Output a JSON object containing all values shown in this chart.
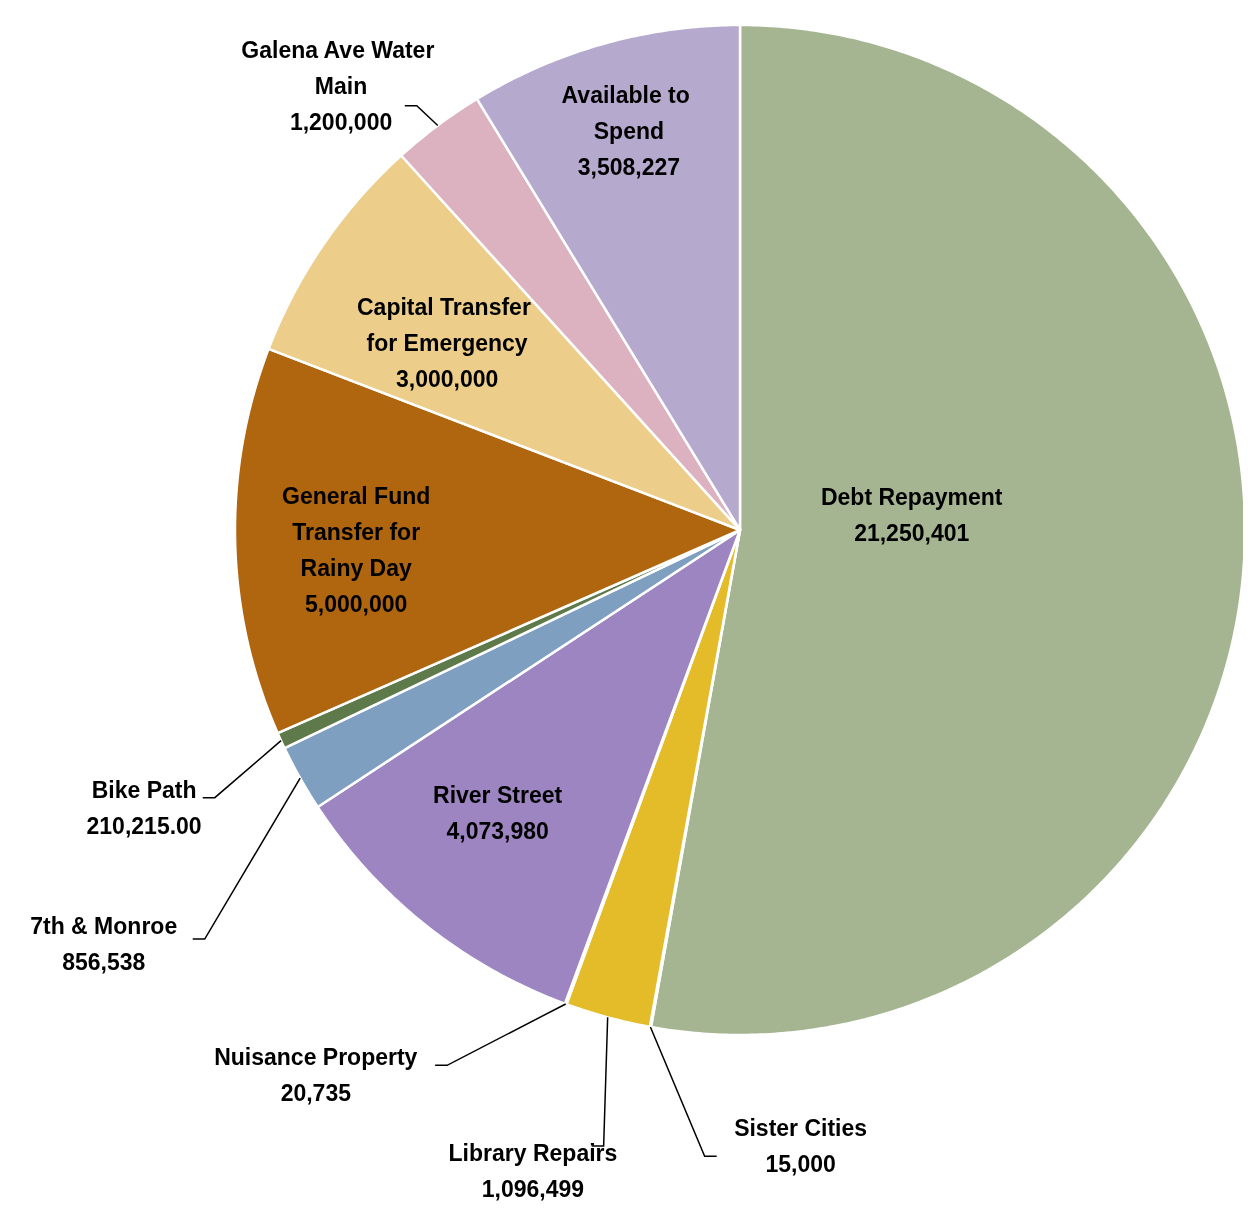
{
  "chart_data": {
    "type": "pie",
    "categories": [
      "Debt Repayment",
      "Sister Cities",
      "Library Repairs",
      "Nuisance Property",
      "River Street",
      "7th & Monroe",
      "Bike Path",
      "General Fund Transfer for Rainy Day",
      "Capital Transfer for Emergency",
      "Galena Ave Water Main",
      "Available to Spend"
    ],
    "values": [
      21250401,
      15000,
      1096499,
      20735,
      4073980,
      856538,
      210215,
      5000000,
      3000000,
      1200000,
      3508227
    ],
    "value_labels": [
      "21,250,401",
      "15,000",
      "1,096,499",
      "20,735",
      "4,073,980",
      "856,538",
      "210,215.00",
      "5,000,000",
      "3,000,000",
      "1,200,000",
      "3,508,227"
    ],
    "colors": [
      "#a5b592",
      "#e4bc2a",
      "#e4bc2a",
      "#9c85c0",
      "#9c85c0",
      "#7f9fc0",
      "#5f7a4a",
      "#b0650f",
      "#eccd8a",
      "#dcb1c0",
      "#b6a9ce"
    ]
  }
}
